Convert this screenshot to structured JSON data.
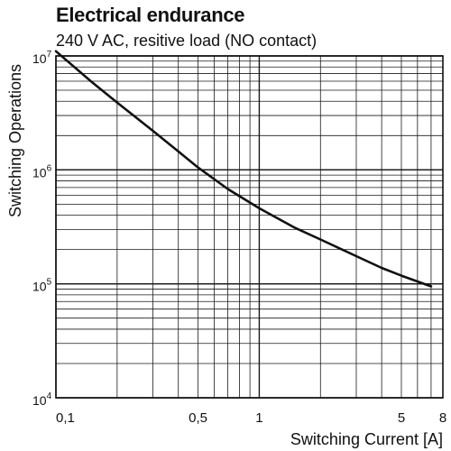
{
  "chart_data": {
    "type": "line",
    "title": "Electrical endurance",
    "subtitle": "240 V AC, resitive load (NO contact)",
    "xlabel": "Switching Current [A]",
    "ylabel": "Switching Operations",
    "x_scale": "log",
    "y_scale": "log",
    "xlim": [
      0.1,
      8
    ],
    "ylim": [
      10000,
      10000000
    ],
    "grid": true,
    "x_tick_labels": [
      {
        "value": 0.1,
        "label": "0,1"
      },
      {
        "value": 0.5,
        "label": "0,5"
      },
      {
        "value": 1,
        "label": "1"
      },
      {
        "value": 5,
        "label": "5"
      },
      {
        "value": 8,
        "label": "8"
      }
    ],
    "y_tick_labels": [
      {
        "value": 10000,
        "base": "10",
        "exp": "4"
      },
      {
        "value": 100000,
        "base": "10",
        "exp": "5"
      },
      {
        "value": 1000000,
        "base": "10",
        "exp": "6"
      },
      {
        "value": 10000000,
        "base": "10",
        "exp": "7"
      }
    ],
    "series": [
      {
        "x": [
          0.1,
          0.15,
          0.2,
          0.3,
          0.4,
          0.5,
          0.7,
          1,
          1.5,
          2,
          3,
          4,
          5,
          7
        ],
        "y": [
          11000000,
          5900000,
          3900000,
          2200000,
          1450000,
          1050000,
          680000,
          460000,
          310000,
          245000,
          175000,
          138000,
          118000,
          95000
        ]
      }
    ],
    "colors": {
      "line": "#111111",
      "grid": "#1a1a1a"
    }
  }
}
